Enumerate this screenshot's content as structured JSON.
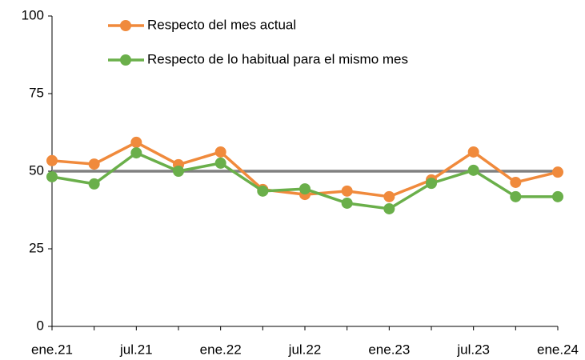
{
  "chart_data": {
    "type": "line",
    "categories": [
      "ene.21",
      null,
      "jul.21",
      null,
      "ene.22",
      null,
      "jul.22",
      null,
      "ene.23",
      null,
      "jul.23",
      null,
      "ene.24"
    ],
    "series": [
      {
        "name": "Respecto del mes actual",
        "color": "#f08a3c",
        "values": [
          53.4,
          52.3,
          59.3,
          52.1,
          56.2,
          44.1,
          42.5,
          43.6,
          41.8,
          47.2,
          56.2,
          46.4,
          49.7
        ]
      },
      {
        "name": "Respecto de lo habitual para el mismo mes",
        "color": "#6aaf4a",
        "values": [
          48.2,
          45.9,
          55.9,
          50.0,
          52.6,
          43.6,
          44.3,
          39.7,
          37.9,
          46.1,
          50.3,
          41.8,
          41.8
        ]
      }
    ],
    "hline": {
      "value": 50,
      "color": "#808080"
    },
    "ylim": [
      0,
      100
    ],
    "yticks": [
      0,
      25,
      50,
      75,
      100
    ],
    "grid": false,
    "legend": "top"
  }
}
